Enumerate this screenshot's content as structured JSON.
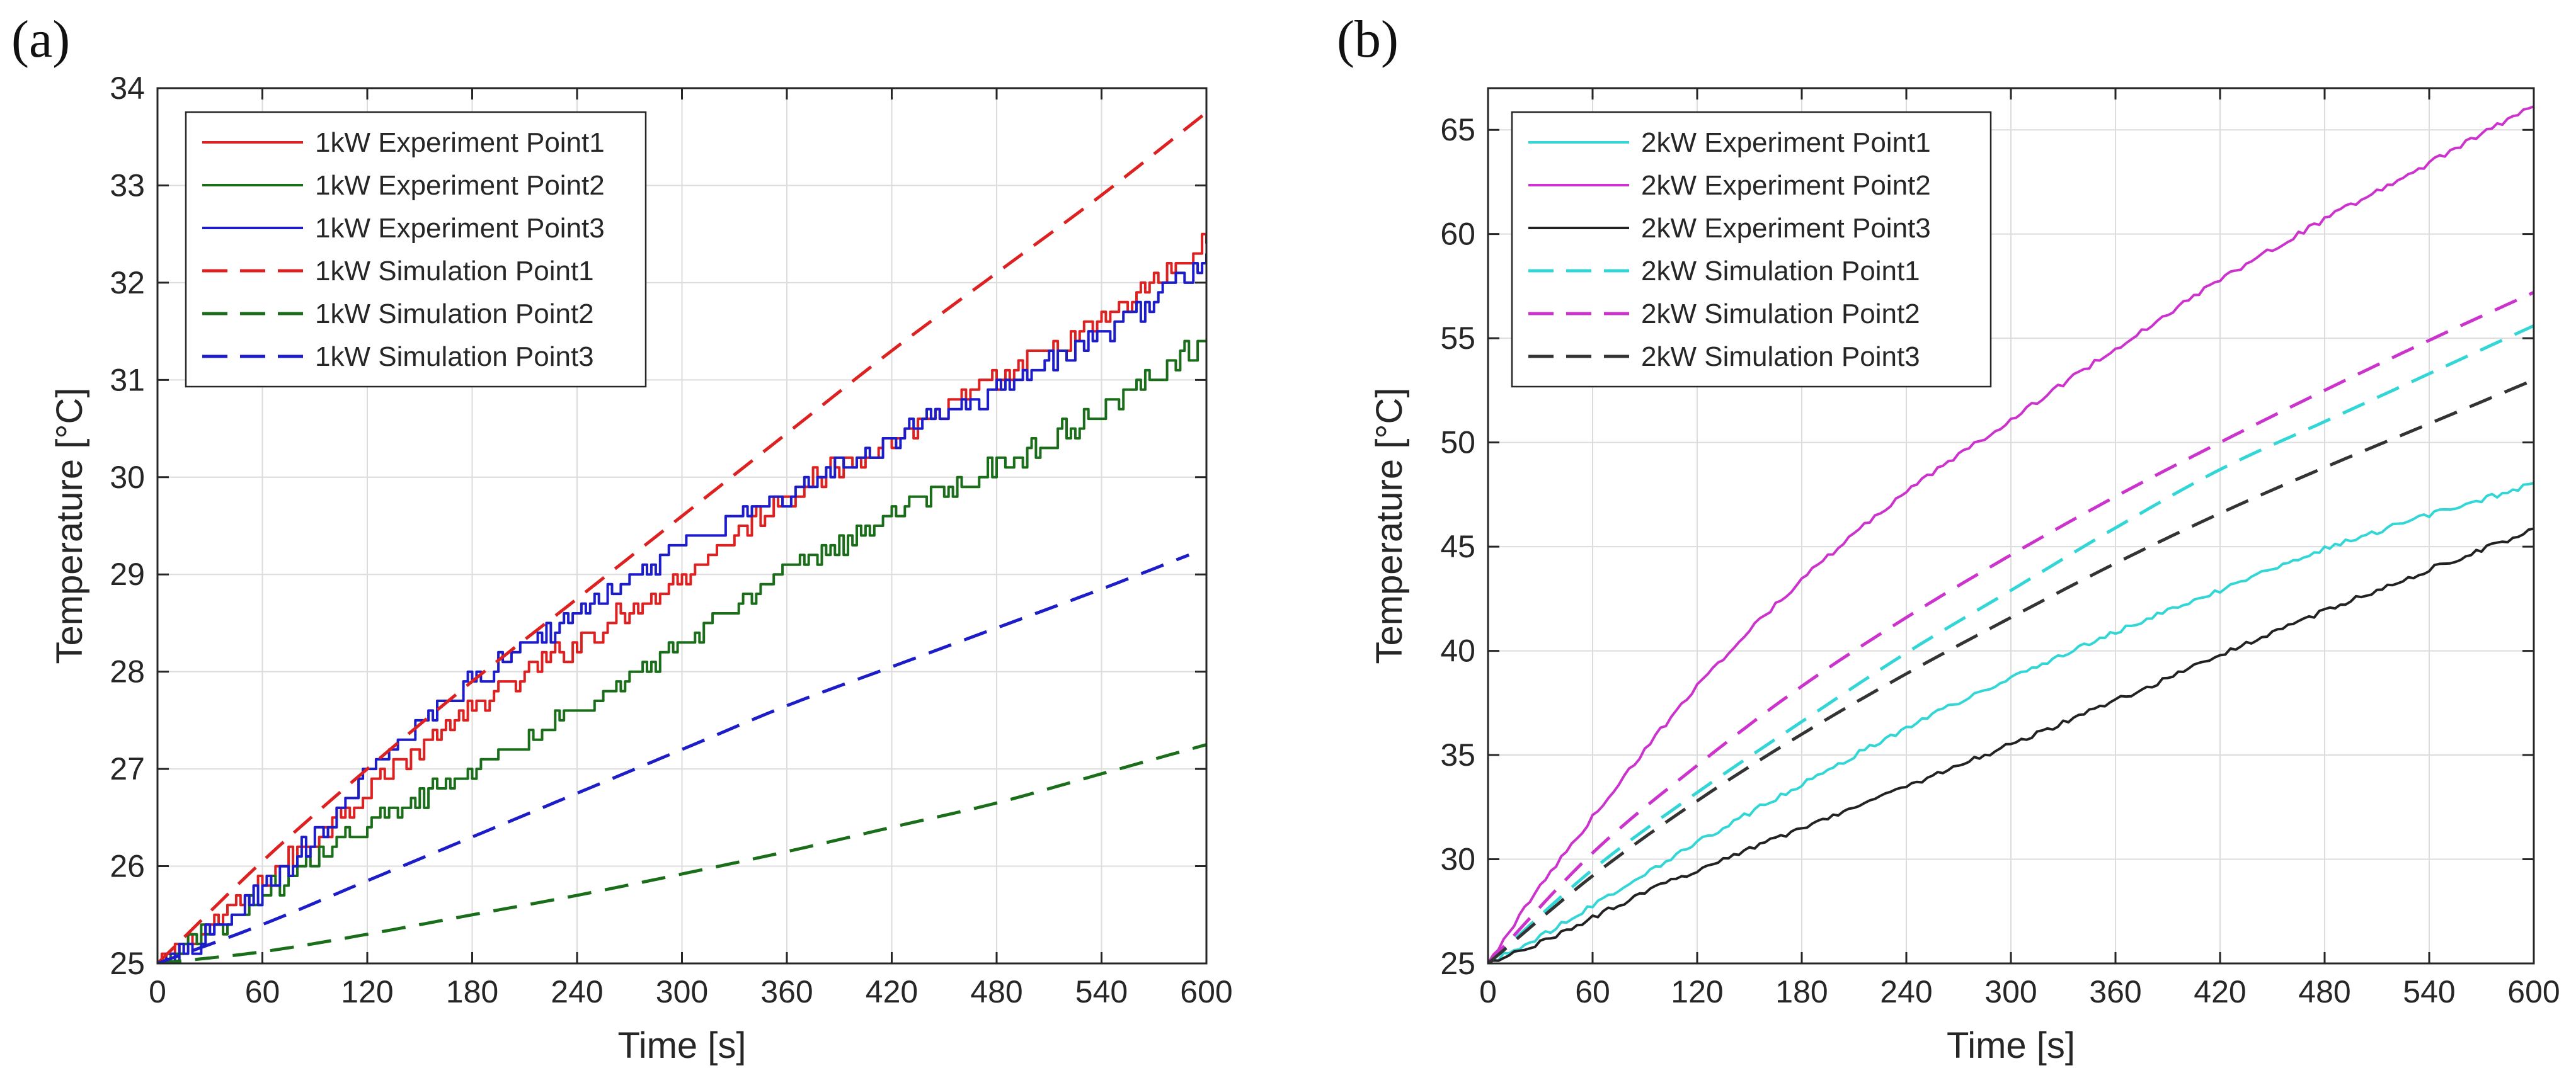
{
  "chart_data": [
    {
      "panel_label": "(a)",
      "type": "line",
      "xlabel": "Time [s]",
      "ylabel": "Temperature [°C]",
      "xlim": [
        0,
        600
      ],
      "ylim": [
        25,
        34
      ],
      "xticks": [
        0,
        60,
        120,
        180,
        240,
        300,
        360,
        420,
        480,
        540,
        600
      ],
      "yticks": [
        25,
        26,
        27,
        28,
        29,
        30,
        31,
        32,
        33,
        34
      ],
      "grid": true,
      "legend_position": "top-left",
      "series": [
        {
          "name": "1kW Experiment Point1",
          "color": "#dd2020",
          "dash": "solid",
          "noise": "step",
          "x": [
            0,
            30,
            60,
            90,
            120,
            180,
            240,
            300,
            360,
            420,
            480,
            540,
            600
          ],
          "y": [
            25.0,
            25.4,
            25.85,
            26.3,
            26.8,
            27.6,
            28.3,
            29.0,
            29.8,
            30.4,
            31.0,
            31.6,
            32.4
          ]
        },
        {
          "name": "1kW Experiment Point2",
          "color": "#1a6e1a",
          "dash": "solid",
          "noise": "step",
          "x": [
            0,
            30,
            60,
            90,
            120,
            180,
            240,
            300,
            360,
            420,
            480,
            540,
            600
          ],
          "y": [
            25.0,
            25.35,
            25.7,
            26.1,
            26.4,
            27.0,
            27.6,
            28.3,
            29.0,
            29.6,
            30.1,
            30.7,
            31.4
          ]
        },
        {
          "name": "1kW Experiment Point3",
          "color": "#1c1cc8",
          "dash": "solid",
          "noise": "step",
          "x": [
            0,
            30,
            60,
            90,
            120,
            180,
            240,
            300,
            360,
            420,
            480,
            540,
            600
          ],
          "y": [
            25.0,
            25.3,
            25.75,
            26.3,
            26.95,
            27.9,
            28.6,
            29.3,
            29.8,
            30.4,
            30.9,
            31.5,
            32.2
          ]
        },
        {
          "name": "1kW Simulation Point1",
          "color": "#dd2020",
          "dash": "dashed",
          "noise": "none",
          "x": [
            0,
            60,
            120,
            180,
            240,
            300,
            360,
            420,
            480,
            540,
            600
          ],
          "y": [
            25.0,
            26.05,
            27.0,
            27.9,
            28.75,
            29.6,
            30.45,
            31.3,
            32.1,
            32.9,
            33.75
          ]
        },
        {
          "name": "1kW Simulation Point2",
          "color": "#1a6e1a",
          "dash": "dashed",
          "noise": "none",
          "x": [
            0,
            60,
            120,
            180,
            240,
            300,
            360,
            420,
            480,
            540,
            600
          ],
          "y": [
            25.0,
            25.12,
            25.3,
            25.5,
            25.7,
            25.92,
            26.15,
            26.4,
            26.65,
            26.95,
            27.25
          ]
        },
        {
          "name": "1kW Simulation Point3",
          "color": "#1c1cc8",
          "dash": "dashed",
          "noise": "none",
          "x": [
            0,
            60,
            120,
            180,
            240,
            300,
            360,
            420,
            480,
            540,
            590
          ],
          "y": [
            25.0,
            25.4,
            25.85,
            26.3,
            26.75,
            27.2,
            27.65,
            28.05,
            28.45,
            28.85,
            29.2
          ]
        }
      ]
    },
    {
      "panel_label": "(b)",
      "type": "line",
      "xlabel": "Time [s]",
      "ylabel": "Temperature [°C]",
      "xlim": [
        0,
        600
      ],
      "ylim": [
        25,
        67
      ],
      "xticks": [
        0,
        60,
        120,
        180,
        240,
        300,
        360,
        420,
        480,
        540,
        600
      ],
      "yticks": [
        25,
        30,
        35,
        40,
        45,
        50,
        55,
        60,
        65
      ],
      "grid": true,
      "legend_position": "top-left",
      "series": [
        {
          "name": "2kW Experiment Point1",
          "color": "#33d6d6",
          "dash": "solid",
          "noise": "jitter",
          "x": [
            0,
            30,
            60,
            120,
            180,
            240,
            300,
            360,
            420,
            480,
            540,
            600
          ],
          "y": [
            25.0,
            26.3,
            27.8,
            30.8,
            33.6,
            36.3,
            38.7,
            40.9,
            42.9,
            44.9,
            46.5,
            48.0
          ]
        },
        {
          "name": "2kW Experiment Point2",
          "color": "#cc33cc",
          "dash": "solid",
          "noise": "jitter",
          "x": [
            0,
            30,
            60,
            120,
            180,
            240,
            300,
            360,
            420,
            480,
            540,
            600
          ],
          "y": [
            25.0,
            28.7,
            32.0,
            38.3,
            43.4,
            47.6,
            51.1,
            54.5,
            57.8,
            60.7,
            63.4,
            66.2
          ]
        },
        {
          "name": "2kW Experiment Point3",
          "color": "#222222",
          "dash": "solid",
          "noise": "jitter",
          "x": [
            0,
            30,
            60,
            120,
            180,
            240,
            300,
            360,
            420,
            480,
            540,
            600
          ],
          "y": [
            25.0,
            26.0,
            27.2,
            29.5,
            31.5,
            33.5,
            35.5,
            37.6,
            39.8,
            41.9,
            43.9,
            45.8
          ]
        },
        {
          "name": "2kW Simulation Point1",
          "color": "#33d6d6",
          "dash": "dashed",
          "noise": "none",
          "x": [
            0,
            60,
            120,
            180,
            240,
            300,
            360,
            420,
            480,
            540,
            600
          ],
          "y": [
            25.0,
            29.5,
            33.2,
            36.6,
            39.9,
            42.9,
            45.9,
            48.7,
            51.0,
            53.3,
            55.6
          ]
        },
        {
          "name": "2kW Simulation Point2",
          "color": "#cc33cc",
          "dash": "dashed",
          "noise": "none",
          "x": [
            0,
            60,
            120,
            180,
            240,
            300,
            360,
            420,
            480,
            540,
            600
          ],
          "y": [
            25.0,
            30.3,
            34.5,
            38.3,
            41.6,
            44.6,
            47.4,
            50.0,
            52.5,
            54.9,
            57.2
          ]
        },
        {
          "name": "2kW Simulation Point3",
          "color": "#333333",
          "dash": "dashed",
          "noise": "none",
          "x": [
            0,
            60,
            120,
            180,
            240,
            300,
            360,
            420,
            480,
            540,
            600
          ],
          "y": [
            25.0,
            29.2,
            32.8,
            36.0,
            38.9,
            41.6,
            44.2,
            46.6,
            48.8,
            50.9,
            53.0
          ]
        }
      ]
    }
  ]
}
